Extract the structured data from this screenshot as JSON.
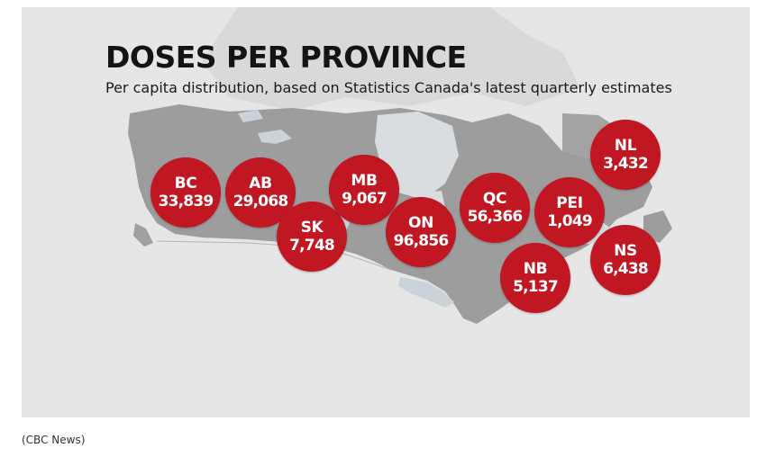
{
  "figure": {
    "title": "DOSES PER PROVINCE",
    "subtitle": "Per capita distribution, based on Statistics Canada's latest quarterly estimates",
    "credit": "(CBC News)",
    "colors": {
      "background": "#e6e6e6",
      "land": "#9d9d9d",
      "water": "#d8dde0",
      "bubble": "#c01722",
      "bubble_text": "#ffffff"
    },
    "provinces": [
      {
        "abbr": "BC",
        "doses": "33,839"
      },
      {
        "abbr": "AB",
        "doses": "29,068"
      },
      {
        "abbr": "SK",
        "doses": "7,748"
      },
      {
        "abbr": "MB",
        "doses": "9,067"
      },
      {
        "abbr": "ON",
        "doses": "96,856"
      },
      {
        "abbr": "QC",
        "doses": "56,366"
      },
      {
        "abbr": "PEI",
        "doses": "1,049"
      },
      {
        "abbr": "NB",
        "doses": "5,137"
      },
      {
        "abbr": "NS",
        "doses": "6,438"
      },
      {
        "abbr": "NL",
        "doses": "3,432"
      }
    ]
  }
}
